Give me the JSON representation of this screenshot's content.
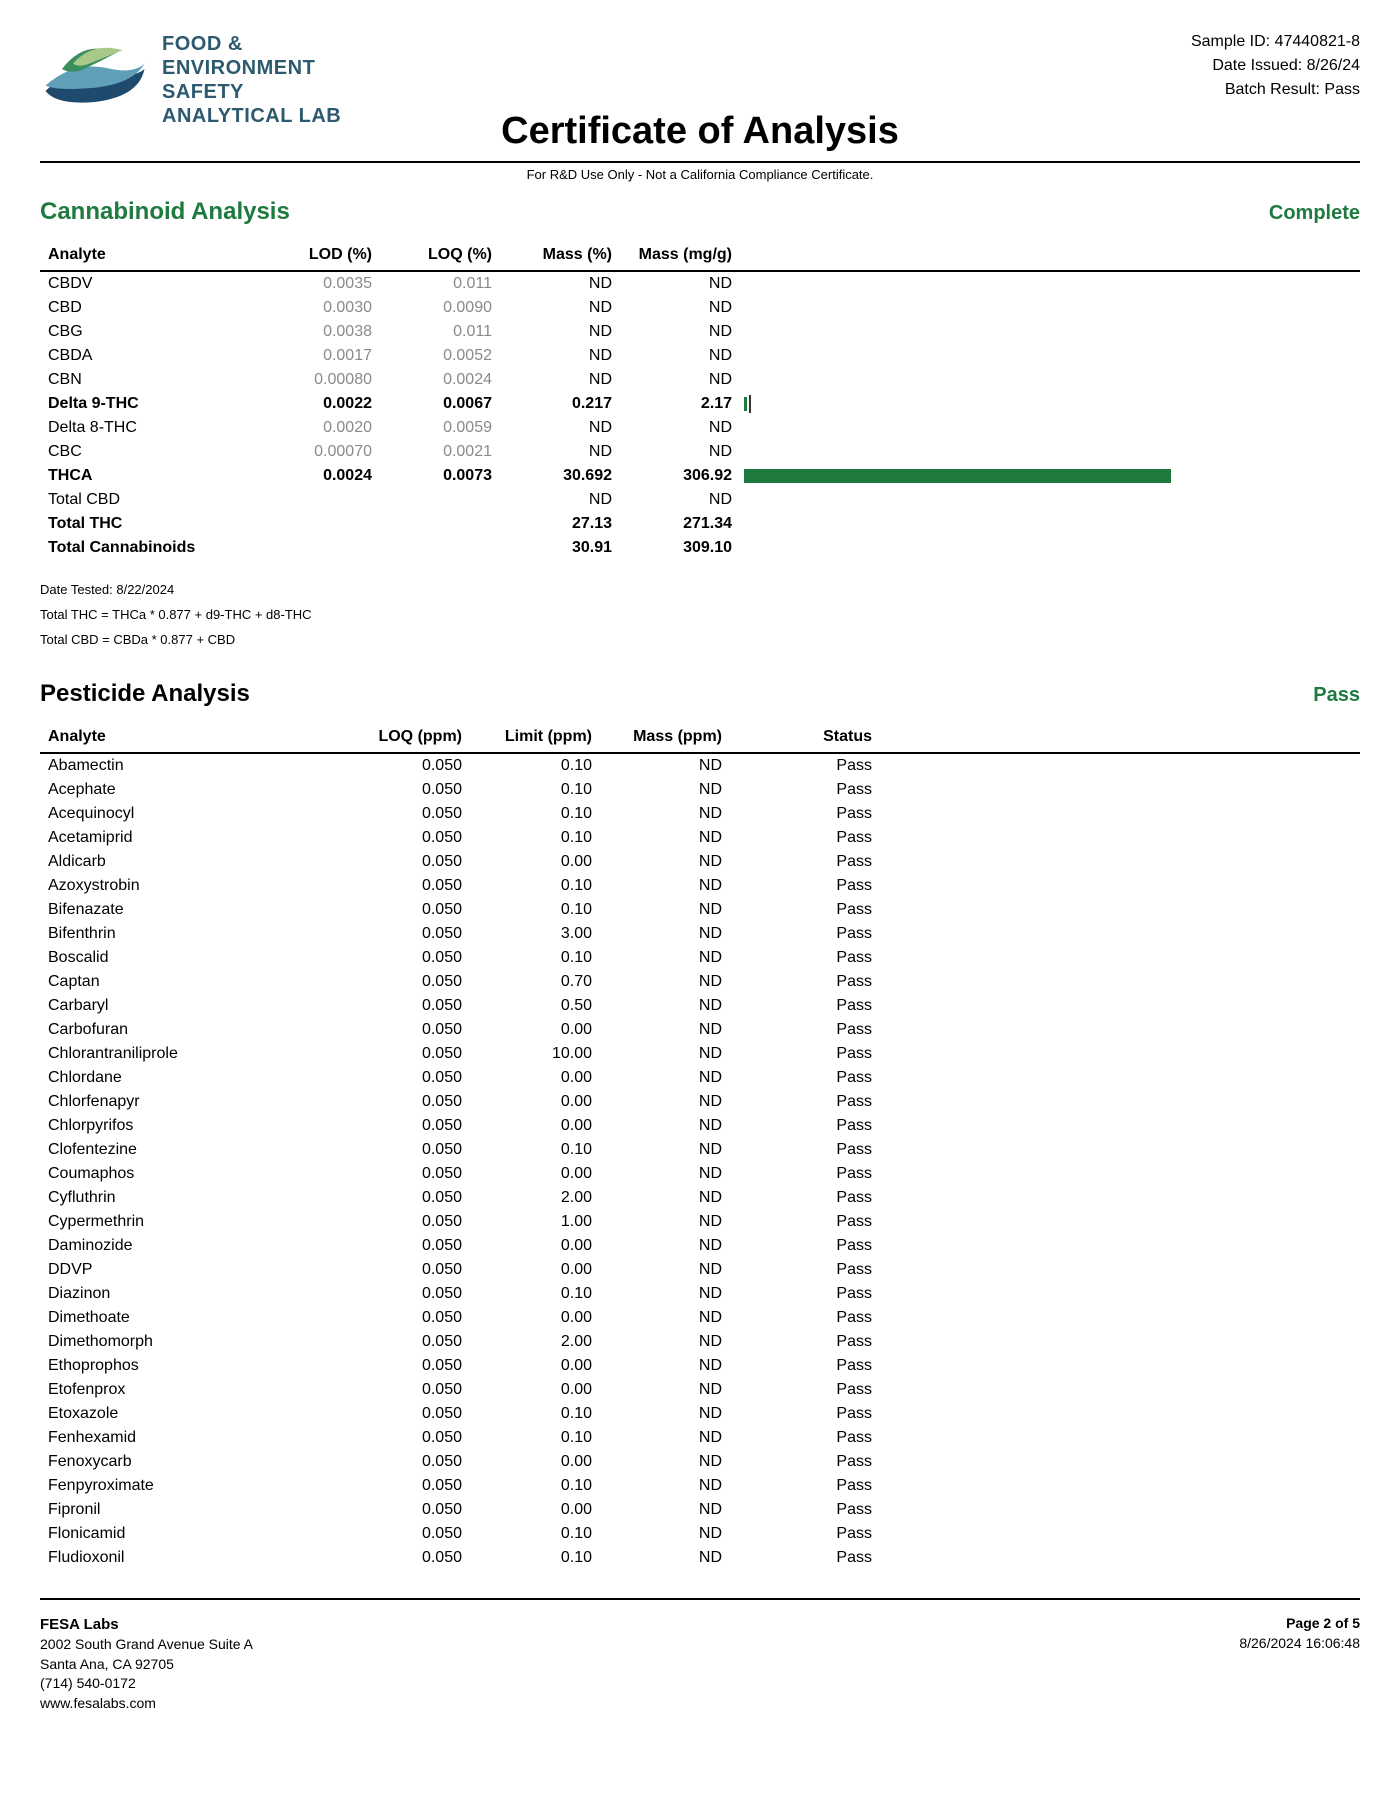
{
  "header": {
    "logo_lines": [
      "FOOD &",
      "ENVIRONMENT",
      "SAFETY",
      "ANALYTICAL LAB"
    ],
    "sample_id_label": "Sample ID:",
    "sample_id": "47440821-8",
    "date_issued_label": "Date Issued:",
    "date_issued": "8/26/24",
    "batch_result_label": "Batch Result:",
    "batch_result": "Pass",
    "title": "Certificate of Analysis",
    "subnote": "For R&D Use Only - Not a California Compliance Certificate.",
    "logo_colors": {
      "leaf_light": "#a8c98a",
      "leaf_dark": "#3a8f5e",
      "wave_top": "#5fa0b8",
      "wave_bottom": "#1e4a6e",
      "text": "#2d5a6e"
    }
  },
  "cannabinoid": {
    "section_title": "Cannabinoid Analysis",
    "status": "Complete",
    "columns": [
      "Analyte",
      "LOD (%)",
      "LOQ (%)",
      "Mass (%)",
      "Mass (mg/g)"
    ],
    "bar_max_value": 309.1,
    "bar_color": "#1e7a3e",
    "rows": [
      {
        "analyte": "CBDV",
        "lod": "0.0035",
        "loq": "0.011",
        "mass_pct": "ND",
        "mass_mgg": "ND",
        "bold": false,
        "bar": 0
      },
      {
        "analyte": "CBD",
        "lod": "0.0030",
        "loq": "0.0090",
        "mass_pct": "ND",
        "mass_mgg": "ND",
        "bold": false,
        "bar": 0
      },
      {
        "analyte": "CBG",
        "lod": "0.0038",
        "loq": "0.011",
        "mass_pct": "ND",
        "mass_mgg": "ND",
        "bold": false,
        "bar": 0
      },
      {
        "analyte": "CBDA",
        "lod": "0.0017",
        "loq": "0.0052",
        "mass_pct": "ND",
        "mass_mgg": "ND",
        "bold": false,
        "bar": 0
      },
      {
        "analyte": "CBN",
        "lod": "0.00080",
        "loq": "0.0024",
        "mass_pct": "ND",
        "mass_mgg": "ND",
        "bold": false,
        "bar": 0
      },
      {
        "analyte": "Delta 9-THC",
        "lod": "0.0022",
        "loq": "0.0067",
        "mass_pct": "0.217",
        "mass_mgg": "2.17",
        "bold": true,
        "bar": 2.17,
        "tick": true
      },
      {
        "analyte": "Delta 8-THC",
        "lod": "0.0020",
        "loq": "0.0059",
        "mass_pct": "ND",
        "mass_mgg": "ND",
        "bold": false,
        "bar": 0
      },
      {
        "analyte": "CBC",
        "lod": "0.00070",
        "loq": "0.0021",
        "mass_pct": "ND",
        "mass_mgg": "ND",
        "bold": false,
        "bar": 0
      },
      {
        "analyte": "THCA",
        "lod": "0.0024",
        "loq": "0.0073",
        "mass_pct": "30.692",
        "mass_mgg": "306.92",
        "bold": true,
        "bar": 306.92
      },
      {
        "analyte": "Total CBD",
        "lod": "",
        "loq": "",
        "mass_pct": "ND",
        "mass_mgg": "ND",
        "bold": false,
        "bar": 0
      },
      {
        "analyte": "Total THC",
        "lod": "",
        "loq": "",
        "mass_pct": "27.13",
        "mass_mgg": "271.34",
        "bold": true,
        "bar": 0
      },
      {
        "analyte": "Total Cannabinoids",
        "lod": "",
        "loq": "",
        "mass_pct": "30.91",
        "mass_mgg": "309.10",
        "bold": true,
        "bar": 0
      }
    ],
    "notes": [
      "Date Tested: 8/22/2024",
      "Total THC = THCa * 0.877 + d9-THC + d8-THC",
      "Total CBD = CBDa * 0.877 + CBD"
    ]
  },
  "pesticide": {
    "section_title": "Pesticide Analysis",
    "status": "Pass",
    "columns": [
      "Analyte",
      "LOQ (ppm)",
      "Limit (ppm)",
      "Mass (ppm)",
      "Status"
    ],
    "rows": [
      {
        "a": "Abamectin",
        "loq": "0.050",
        "limit": "0.10",
        "mass": "ND",
        "status": "Pass"
      },
      {
        "a": "Acephate",
        "loq": "0.050",
        "limit": "0.10",
        "mass": "ND",
        "status": "Pass"
      },
      {
        "a": "Acequinocyl",
        "loq": "0.050",
        "limit": "0.10",
        "mass": "ND",
        "status": "Pass"
      },
      {
        "a": "Acetamiprid",
        "loq": "0.050",
        "limit": "0.10",
        "mass": "ND",
        "status": "Pass"
      },
      {
        "a": "Aldicarb",
        "loq": "0.050",
        "limit": "0.00",
        "mass": "ND",
        "status": "Pass"
      },
      {
        "a": "Azoxystrobin",
        "loq": "0.050",
        "limit": "0.10",
        "mass": "ND",
        "status": "Pass"
      },
      {
        "a": "Bifenazate",
        "loq": "0.050",
        "limit": "0.10",
        "mass": "ND",
        "status": "Pass"
      },
      {
        "a": "Bifenthrin",
        "loq": "0.050",
        "limit": "3.00",
        "mass": "ND",
        "status": "Pass"
      },
      {
        "a": "Boscalid",
        "loq": "0.050",
        "limit": "0.10",
        "mass": "ND",
        "status": "Pass"
      },
      {
        "a": "Captan",
        "loq": "0.050",
        "limit": "0.70",
        "mass": "ND",
        "status": "Pass"
      },
      {
        "a": "Carbaryl",
        "loq": "0.050",
        "limit": "0.50",
        "mass": "ND",
        "status": "Pass"
      },
      {
        "a": "Carbofuran",
        "loq": "0.050",
        "limit": "0.00",
        "mass": "ND",
        "status": "Pass"
      },
      {
        "a": "Chlorantraniliprole",
        "loq": "0.050",
        "limit": "10.00",
        "mass": "ND",
        "status": "Pass"
      },
      {
        "a": "Chlordane",
        "loq": "0.050",
        "limit": "0.00",
        "mass": "ND",
        "status": "Pass"
      },
      {
        "a": "Chlorfenapyr",
        "loq": "0.050",
        "limit": "0.00",
        "mass": "ND",
        "status": "Pass"
      },
      {
        "a": "Chlorpyrifos",
        "loq": "0.050",
        "limit": "0.00",
        "mass": "ND",
        "status": "Pass"
      },
      {
        "a": "Clofentezine",
        "loq": "0.050",
        "limit": "0.10",
        "mass": "ND",
        "status": "Pass"
      },
      {
        "a": "Coumaphos",
        "loq": "0.050",
        "limit": "0.00",
        "mass": "ND",
        "status": "Pass"
      },
      {
        "a": "Cyfluthrin",
        "loq": "0.050",
        "limit": "2.00",
        "mass": "ND",
        "status": "Pass"
      },
      {
        "a": "Cypermethrin",
        "loq": "0.050",
        "limit": "1.00",
        "mass": "ND",
        "status": "Pass"
      },
      {
        "a": "Daminozide",
        "loq": "0.050",
        "limit": "0.00",
        "mass": "ND",
        "status": "Pass"
      },
      {
        "a": "DDVP",
        "loq": "0.050",
        "limit": "0.00",
        "mass": "ND",
        "status": "Pass"
      },
      {
        "a": "Diazinon",
        "loq": "0.050",
        "limit": "0.10",
        "mass": "ND",
        "status": "Pass"
      },
      {
        "a": "Dimethoate",
        "loq": "0.050",
        "limit": "0.00",
        "mass": "ND",
        "status": "Pass"
      },
      {
        "a": "Dimethomorph",
        "loq": "0.050",
        "limit": "2.00",
        "mass": "ND",
        "status": "Pass"
      },
      {
        "a": "Ethoprophos",
        "loq": "0.050",
        "limit": "0.00",
        "mass": "ND",
        "status": "Pass"
      },
      {
        "a": "Etofenprox",
        "loq": "0.050",
        "limit": "0.00",
        "mass": "ND",
        "status": "Pass"
      },
      {
        "a": "Etoxazole",
        "loq": "0.050",
        "limit": "0.10",
        "mass": "ND",
        "status": "Pass"
      },
      {
        "a": "Fenhexamid",
        "loq": "0.050",
        "limit": "0.10",
        "mass": "ND",
        "status": "Pass"
      },
      {
        "a": "Fenoxycarb",
        "loq": "0.050",
        "limit": "0.00",
        "mass": "ND",
        "status": "Pass"
      },
      {
        "a": "Fenpyroximate",
        "loq": "0.050",
        "limit": "0.10",
        "mass": "ND",
        "status": "Pass"
      },
      {
        "a": "Fipronil",
        "loq": "0.050",
        "limit": "0.00",
        "mass": "ND",
        "status": "Pass"
      },
      {
        "a": "Flonicamid",
        "loq": "0.050",
        "limit": "0.10",
        "mass": "ND",
        "status": "Pass"
      },
      {
        "a": "Fludioxonil",
        "loq": "0.050",
        "limit": "0.10",
        "mass": "ND",
        "status": "Pass"
      }
    ]
  },
  "footer": {
    "company": "FESA Labs",
    "address1": "2002 South Grand Avenue Suite A",
    "address2": "Santa Ana, CA 92705",
    "phone": "(714) 540-0172",
    "website": "www.fesalabs.com",
    "page": "Page 2 of 5",
    "timestamp": "8/26/2024 16:06:48"
  }
}
